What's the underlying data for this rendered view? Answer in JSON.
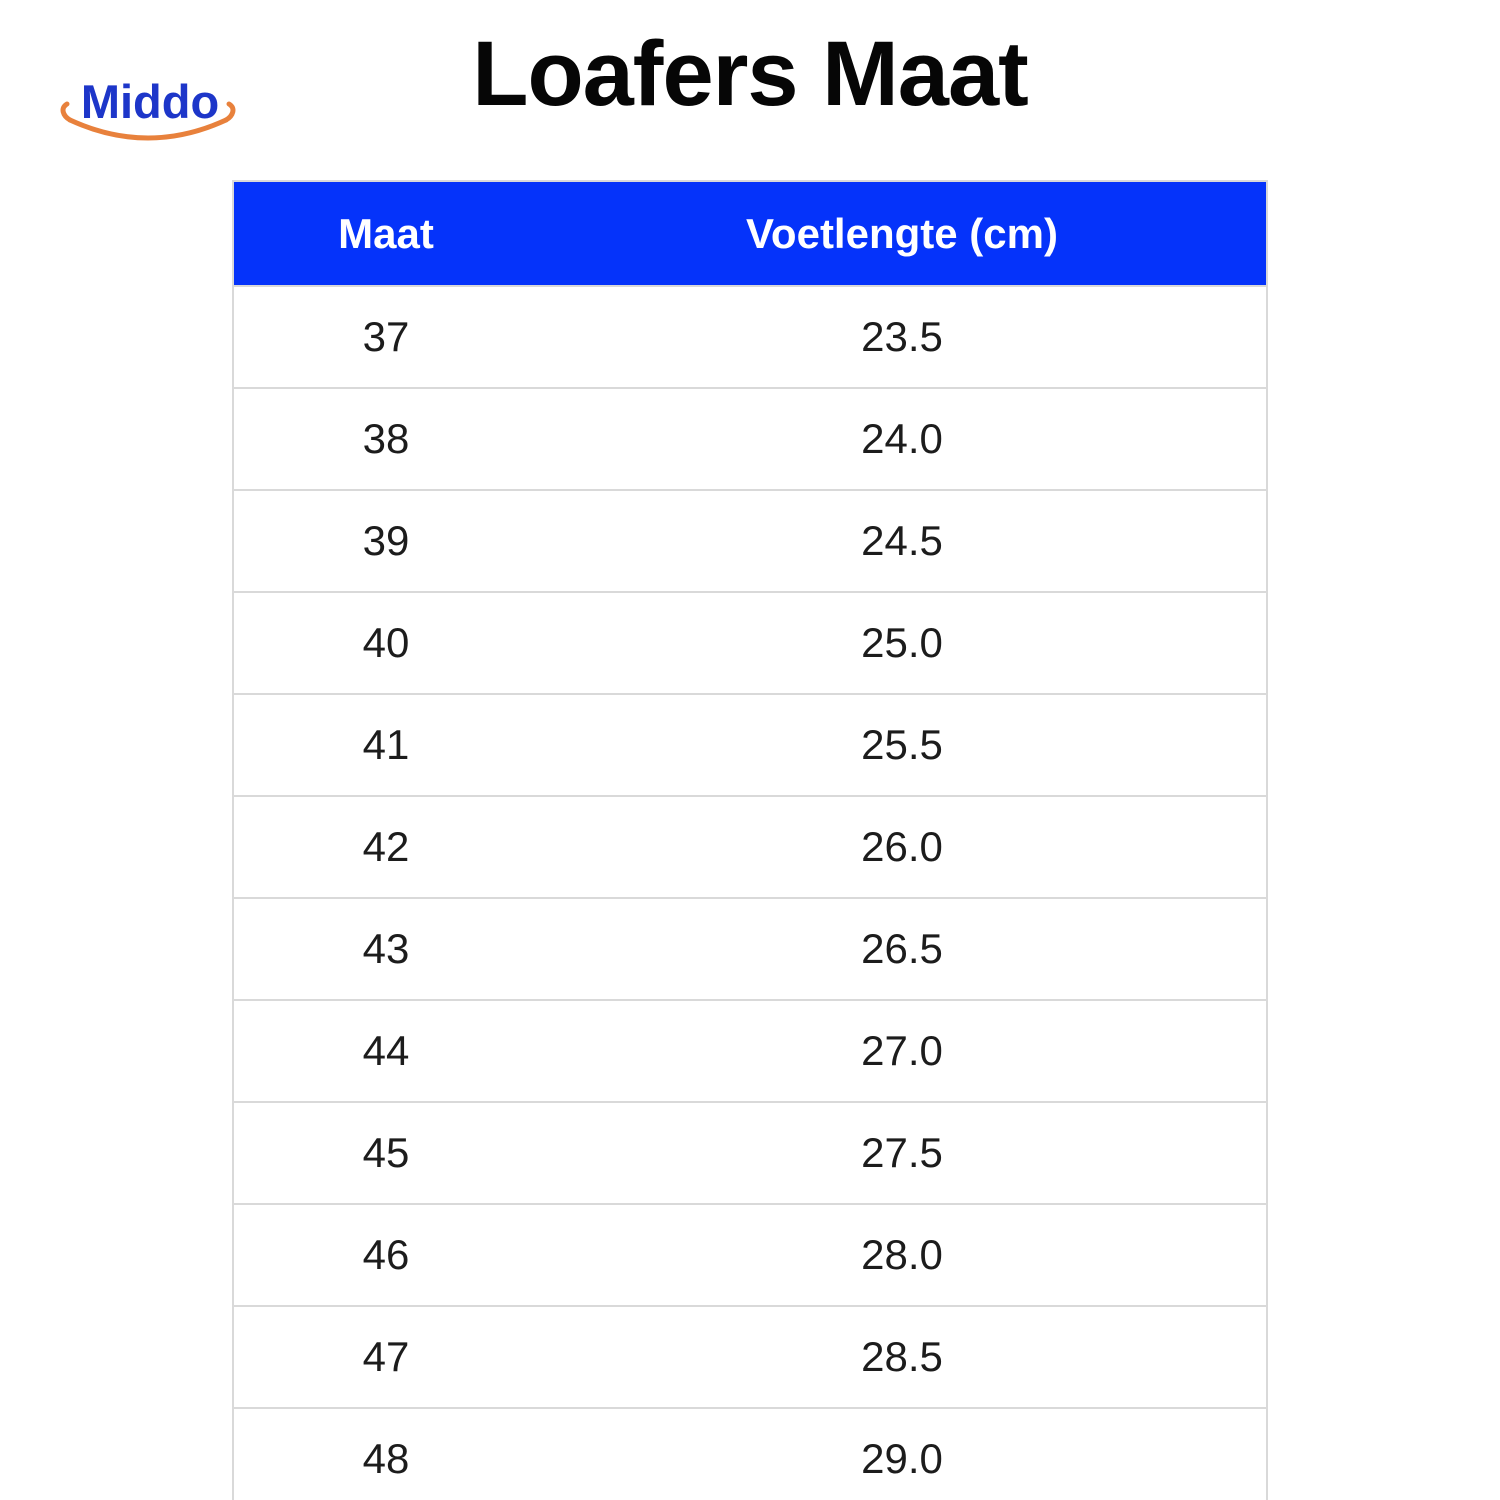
{
  "logo": {
    "text": "Middo",
    "text_color": "#1d36c9",
    "smile_color": "#e8813c"
  },
  "title": "Loafers Maat",
  "colors": {
    "header_bg": "#0533fa",
    "header_text": "#ffffff",
    "row_border": "#d9d9d9"
  },
  "chart_data": {
    "type": "table",
    "title": "Loafers Maat",
    "columns": [
      "Maat",
      "Voetlengte (cm)"
    ],
    "rows": [
      [
        "37",
        "23.5"
      ],
      [
        "38",
        "24.0"
      ],
      [
        "39",
        "24.5"
      ],
      [
        "40",
        "25.0"
      ],
      [
        "41",
        "25.5"
      ],
      [
        "42",
        "26.0"
      ],
      [
        "43",
        "26.5"
      ],
      [
        "44",
        "27.0"
      ],
      [
        "45",
        "27.5"
      ],
      [
        "46",
        "28.0"
      ],
      [
        "47",
        "28.5"
      ],
      [
        "48",
        "29.0"
      ]
    ]
  }
}
